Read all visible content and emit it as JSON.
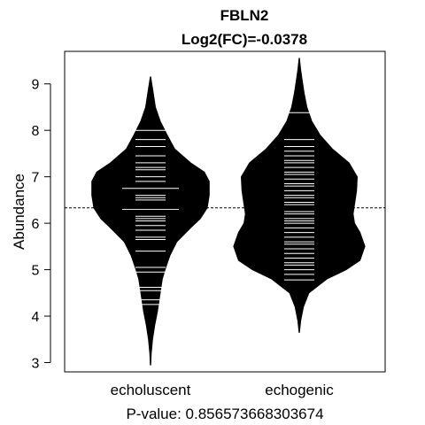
{
  "chart_data": {
    "type": "beanplot",
    "title": "FBLN2",
    "subtitle": "Log2(FC)=-0.0378",
    "ylabel": "Abundance",
    "xlabel": "P-value: 0.856573668303674",
    "categories": [
      "echoluscent",
      "echogenic"
    ],
    "ylim": [
      2.8,
      9.7
    ],
    "yticks": [
      3,
      4,
      5,
      6,
      7,
      8,
      9
    ],
    "grid": false,
    "overall_mean": 6.33,
    "fill_color": "#000000",
    "line_color": "#ffffff",
    "series": [
      {
        "range": [
          2.95,
          9.15
        ],
        "mean": 6.33,
        "density": [
          [
            2.95,
            0.002
          ],
          [
            3.2,
            0.01
          ],
          [
            3.5,
            0.03
          ],
          [
            3.8,
            0.06
          ],
          [
            4.1,
            0.1
          ],
          [
            4.4,
            0.13
          ],
          [
            4.6,
            0.15
          ],
          [
            4.8,
            0.17
          ],
          [
            5.0,
            0.21
          ],
          [
            5.3,
            0.28
          ],
          [
            5.6,
            0.38
          ],
          [
            5.9,
            0.58
          ],
          [
            6.1,
            0.72
          ],
          [
            6.33,
            0.82
          ],
          [
            6.6,
            0.85
          ],
          [
            6.9,
            0.85
          ],
          [
            7.1,
            0.78
          ],
          [
            7.3,
            0.58
          ],
          [
            7.6,
            0.35
          ],
          [
            7.9,
            0.24
          ],
          [
            8.2,
            0.14
          ],
          [
            8.5,
            0.07
          ],
          [
            8.8,
            0.04
          ],
          [
            9.15,
            0.002
          ]
        ],
        "observations": [
          4.25,
          4.35,
          4.55,
          4.62,
          4.95,
          5.05,
          5.4,
          5.65,
          5.7,
          5.85,
          5.95,
          6.05,
          6.1,
          6.15,
          6.3,
          6.5,
          6.55,
          6.6,
          6.75,
          6.9,
          7.0,
          7.15,
          7.2,
          7.3,
          7.45,
          7.65,
          7.8,
          8.0
        ],
        "long_marks": [
          4.55,
          6.3,
          6.75
        ]
      },
      {
        "range": [
          3.65,
          9.55
        ],
        "mean": 6.3,
        "density": [
          [
            3.65,
            0.002
          ],
          [
            3.9,
            0.02
          ],
          [
            4.2,
            0.06
          ],
          [
            4.5,
            0.14
          ],
          [
            4.8,
            0.4
          ],
          [
            5.0,
            0.68
          ],
          [
            5.2,
            0.88
          ],
          [
            5.5,
            0.95
          ],
          [
            5.8,
            0.88
          ],
          [
            6.0,
            0.8
          ],
          [
            6.2,
            0.78
          ],
          [
            6.4,
            0.8
          ],
          [
            6.7,
            0.83
          ],
          [
            7.0,
            0.84
          ],
          [
            7.3,
            0.72
          ],
          [
            7.6,
            0.48
          ],
          [
            7.9,
            0.3
          ],
          [
            8.2,
            0.18
          ],
          [
            8.5,
            0.11
          ],
          [
            8.8,
            0.07
          ],
          [
            9.1,
            0.04
          ],
          [
            9.3,
            0.02
          ],
          [
            9.55,
            0.002
          ]
        ],
        "observations": [
          4.78,
          4.9,
          5.0,
          5.1,
          5.15,
          5.25,
          5.35,
          5.45,
          5.55,
          5.6,
          5.7,
          5.8,
          5.9,
          6.0,
          6.05,
          6.1,
          6.2,
          6.25,
          6.3,
          6.4,
          6.45,
          6.55,
          6.6,
          6.7,
          6.8,
          6.85,
          6.95,
          7.05,
          7.1,
          7.2,
          7.3,
          7.35,
          7.45,
          7.55,
          7.65,
          7.8,
          8.38
        ],
        "long_marks": [
          8.38
        ]
      }
    ]
  }
}
